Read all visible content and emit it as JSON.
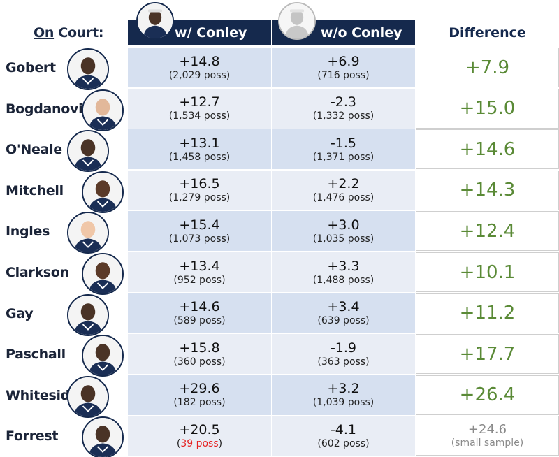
{
  "header": {
    "on_court_prefix": "On",
    "on_court_suffix": " Court:",
    "with_label": "w/ Conley",
    "without_label": "w/o Conley",
    "difference_label": "Difference"
  },
  "colors": {
    "navy": "#15294d",
    "diff_green": "#5a8a36",
    "muted_gray": "#8a8a8a",
    "alert_red": "#e52222"
  },
  "rows": [
    {
      "name": "Gobert",
      "with_val": "+14.8",
      "with_poss": "(2,029 poss)",
      "without_val": "+6.9",
      "without_poss": "(716 poss)",
      "diff": "+7.9"
    },
    {
      "name": "Bogdanovic",
      "with_val": "+12.7",
      "with_poss": "(1,534 poss)",
      "without_val": "-2.3",
      "without_poss": "(1,332 poss)",
      "diff": "+15.0"
    },
    {
      "name": "O'Neale",
      "with_val": "+13.1",
      "with_poss": "(1,458 poss)",
      "without_val": "-1.5",
      "without_poss": "(1,371 poss)",
      "diff": "+14.6"
    },
    {
      "name": "Mitchell",
      "with_val": "+16.5",
      "with_poss": "(1,279 poss)",
      "without_val": "+2.2",
      "without_poss": "(1,476 poss)",
      "diff": "+14.3"
    },
    {
      "name": "Ingles",
      "with_val": "+15.4",
      "with_poss": "(1,073 poss)",
      "without_val": "+3.0",
      "without_poss": "(1,035 poss)",
      "diff": "+12.4"
    },
    {
      "name": "Clarkson",
      "with_val": "+13.4",
      "with_poss": "(952 poss)",
      "without_val": "+3.3",
      "without_poss": "(1,488 poss)",
      "diff": "+10.1"
    },
    {
      "name": "Gay",
      "with_val": "+14.6",
      "with_poss": "(589 poss)",
      "without_val": "+3.4",
      "without_poss": "(639 poss)",
      "diff": "+11.2"
    },
    {
      "name": "Paschall",
      "with_val": "+15.8",
      "with_poss": "(360 poss)",
      "without_val": "-1.9",
      "without_poss": "(363 poss)",
      "diff": "+17.7"
    },
    {
      "name": "Whiteside",
      "with_val": "+29.6",
      "with_poss": "(182 poss)",
      "without_val": "+3.2",
      "without_poss": "(1,039 poss)",
      "diff": "+26.4"
    },
    {
      "name": "Forrest",
      "with_val": "+20.5",
      "with_poss_open": "(",
      "with_poss_red": "39 poss",
      "with_poss_close": ")",
      "without_val": "-4.1",
      "without_poss": "(602 poss)",
      "diff": "+24.6",
      "diff_note": "(small sample)"
    }
  ]
}
